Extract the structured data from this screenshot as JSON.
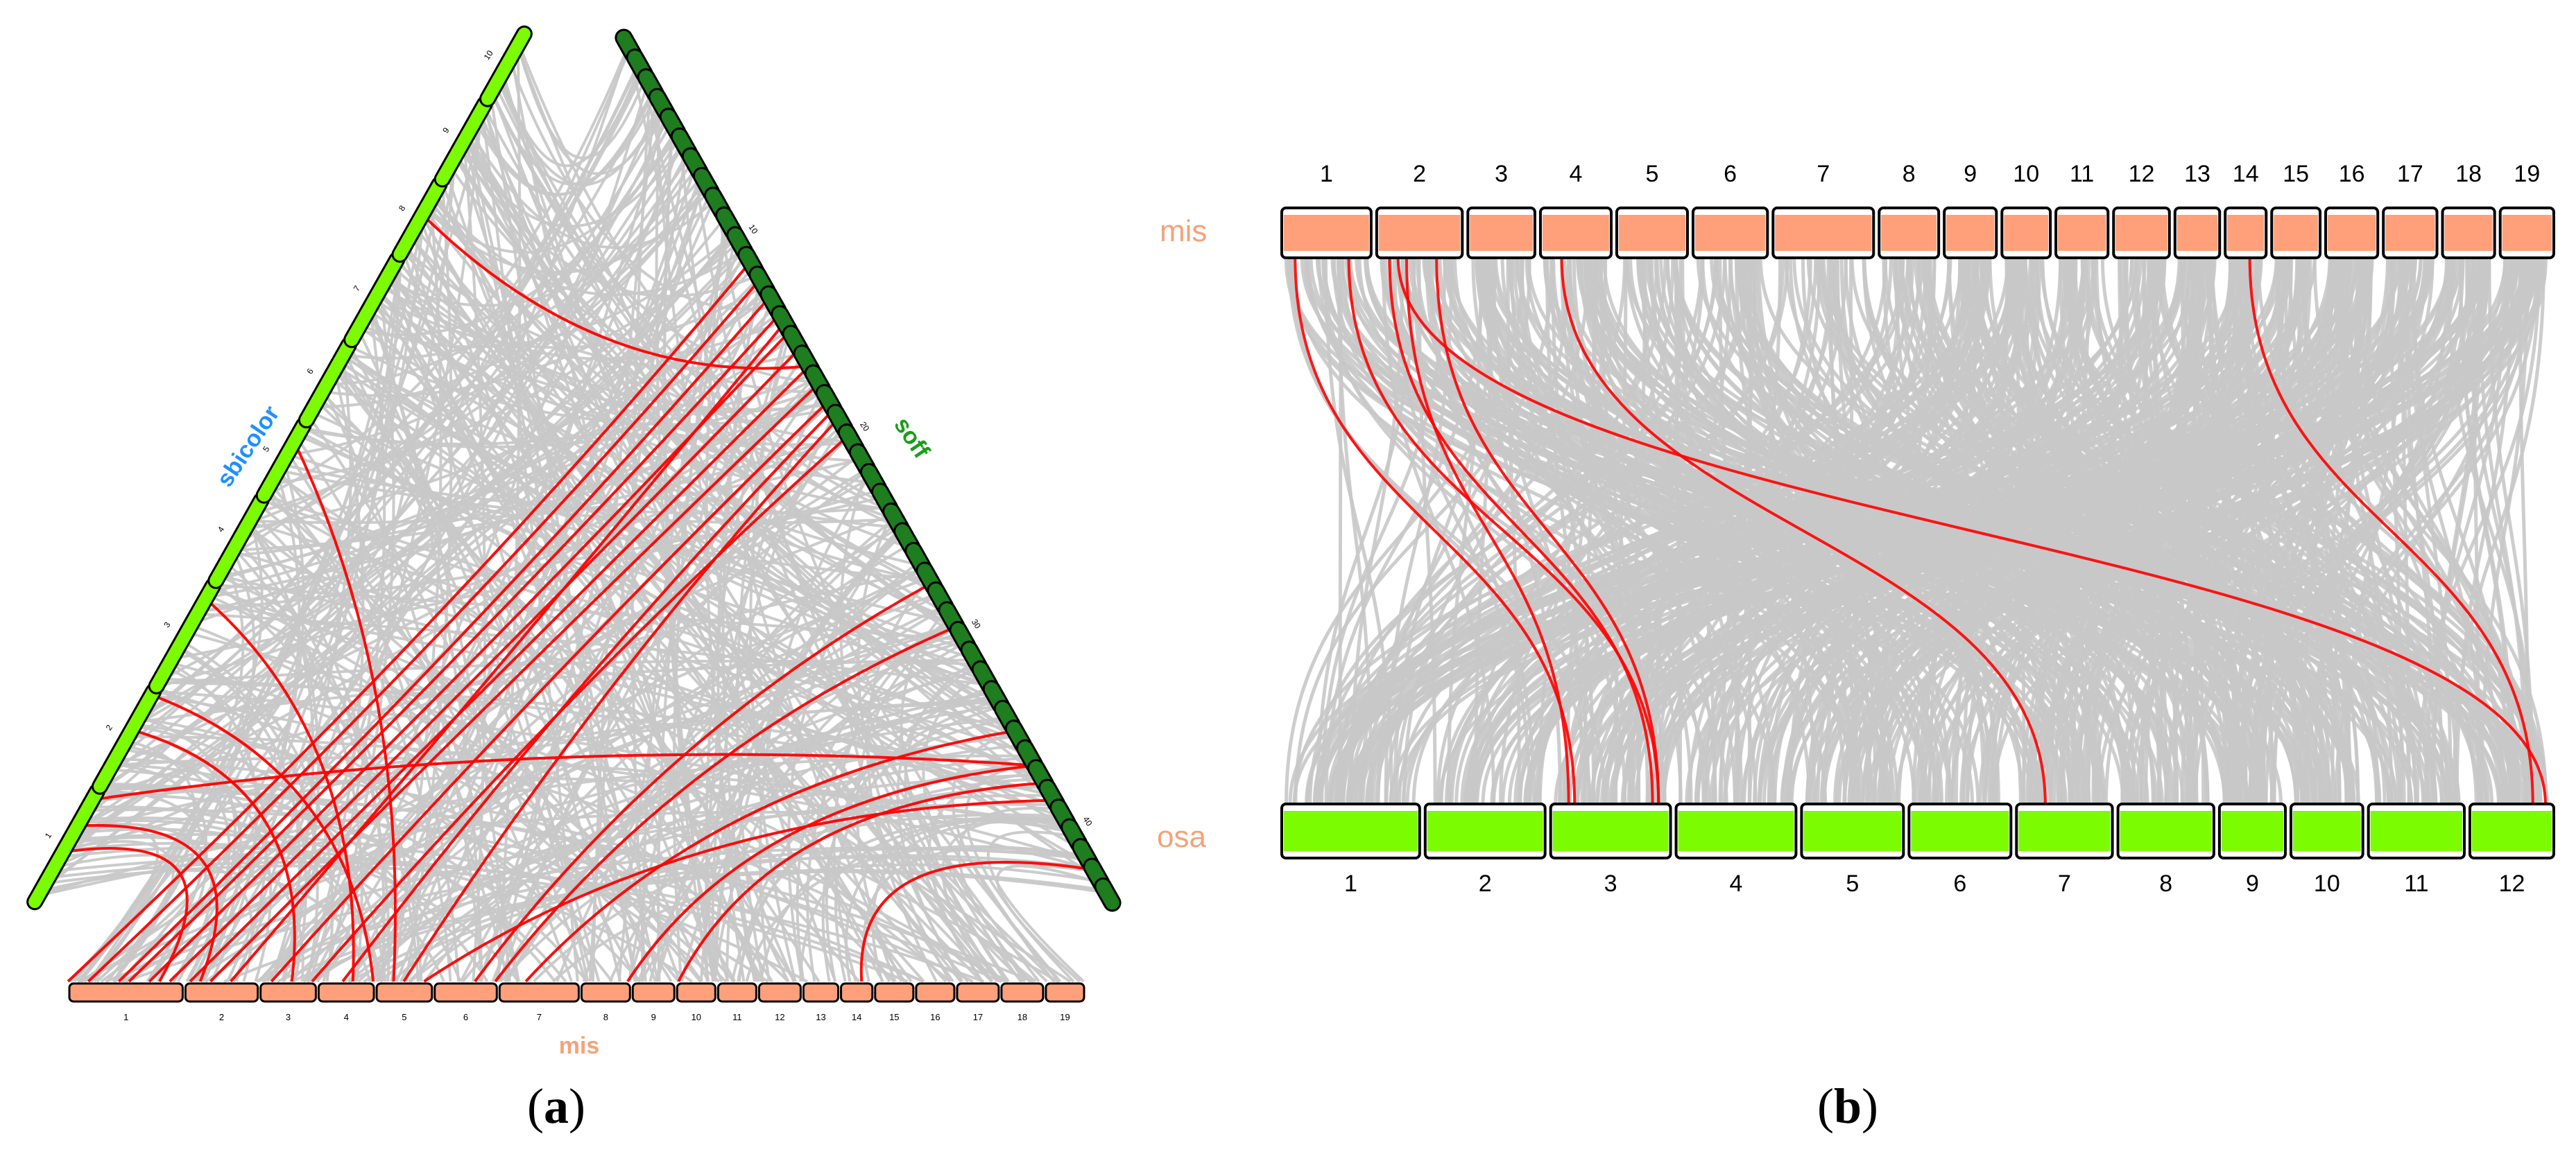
{
  "figure": {
    "panel_a": {
      "caption_letter": "a",
      "genome_left": {
        "name": "sbicolor",
        "name_color": "#1e90ff",
        "chr_color": "#7cfc00",
        "chr_labels": [
          "1",
          "2",
          "3",
          "4",
          "5",
          "6",
          "7",
          "8",
          "9",
          "10"
        ]
      },
      "genome_right": {
        "name": "soff",
        "name_color": "#1a9e1a",
        "chr_color": "#1e7d1e",
        "tick_labels": [
          "10",
          "20",
          "30",
          "40"
        ]
      },
      "genome_bottom": {
        "name": "mis",
        "name_color": "#f5a27a",
        "chr_color": "#ffa07a",
        "chr_labels": [
          "1",
          "2",
          "3",
          "4",
          "5",
          "6",
          "7",
          "8",
          "9",
          "10",
          "11",
          "12",
          "13",
          "14",
          "15",
          "16",
          "17",
          "18",
          "19"
        ]
      }
    },
    "panel_b": {
      "caption_letter": "b",
      "top_track": {
        "name": "mis",
        "name_color": "#f5a27a",
        "chr_color": "#ffa07a",
        "chr_labels": [
          "1",
          "2",
          "3",
          "4",
          "5",
          "6",
          "7",
          "8",
          "9",
          "10",
          "11",
          "12",
          "13",
          "14",
          "15",
          "16",
          "17",
          "18",
          "19"
        ]
      },
      "bottom_track": {
        "name": "osa",
        "name_color": "#f5a27a",
        "chr_color": "#7cfc00",
        "chr_labels": [
          "1",
          "2",
          "3",
          "4",
          "5",
          "6",
          "7",
          "8",
          "9",
          "10",
          "11",
          "12"
        ]
      }
    },
    "colors": {
      "background_links": "#c8c8c8",
      "highlight_links": "#ff0000"
    }
  }
}
